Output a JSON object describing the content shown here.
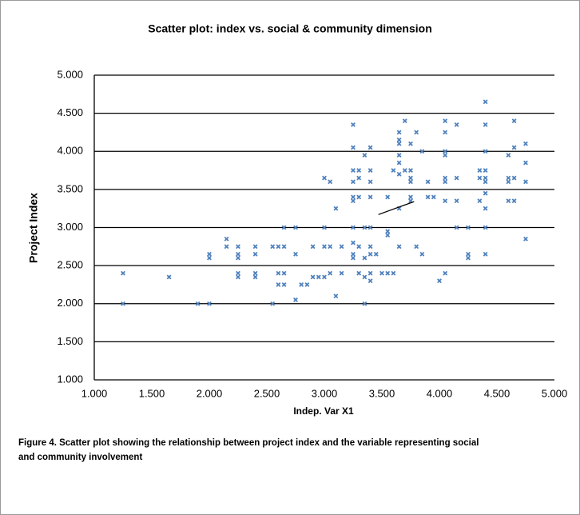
{
  "chart_data": {
    "type": "scatter",
    "title": "Scatter plot: index vs. social & community dimension",
    "x_label": "Indep. Var X1",
    "y_label": "Project  Index",
    "caption": "Figure 4. Scatter plot showing the relationship between project index and the variable representing social and community involvement",
    "color": "#4f81bd",
    "grid": true,
    "xlim": [
      1,
      5
    ],
    "ylim": [
      1,
      5
    ],
    "xticks": [
      {
        "value": 1,
        "label": "1.000"
      },
      {
        "value": 1.5,
        "label": "1.500"
      },
      {
        "value": 2,
        "label": "2.000"
      },
      {
        "value": 2.5,
        "label": "2.500"
      },
      {
        "value": 3,
        "label": "3.000"
      },
      {
        "value": 3.5,
        "label": "3.500"
      },
      {
        "value": 4,
        "label": "4.000"
      },
      {
        "value": 4.5,
        "label": "4.500"
      },
      {
        "value": 5,
        "label": "5.000"
      }
    ],
    "yticks": [
      {
        "value": 1,
        "label": "1.000"
      },
      {
        "value": 1.5,
        "label": "1.500"
      },
      {
        "value": 2,
        "label": "2.000"
      },
      {
        "value": 2.5,
        "label": "2.500"
      },
      {
        "value": 3,
        "label": "3.000"
      },
      {
        "value": 3.5,
        "label": "3.500"
      },
      {
        "value": 4,
        "label": "4.000"
      },
      {
        "value": 4.5,
        "label": "4.500"
      },
      {
        "value": 5,
        "label": "5.000"
      }
    ],
    "trendline": {
      "x": [
        3.47,
        3.78
      ],
      "y": [
        3.17,
        3.34
      ]
    },
    "x": [
      1.25,
      1.25,
      1.65,
      1.9,
      2.0,
      2.0,
      2.0,
      2.15,
      2.15,
      2.25,
      2.25,
      2.25,
      2.25,
      2.25,
      2.4,
      2.4,
      2.4,
      2.4,
      2.55,
      2.55,
      2.6,
      2.6,
      2.6,
      2.65,
      2.65,
      2.65,
      2.65,
      2.75,
      2.75,
      2.75,
      2.8,
      2.85,
      2.9,
      2.9,
      2.95,
      3.0,
      3.0,
      3.0,
      3.0,
      3.05,
      3.05,
      3.05,
      3.1,
      3.1,
      3.15,
      3.15,
      3.25,
      3.25,
      3.25,
      3.25,
      3.25,
      3.25,
      3.25,
      3.25,
      3.25,
      3.25,
      3.3,
      3.3,
      3.3,
      3.3,
      3.3,
      3.35,
      3.35,
      3.35,
      3.35,
      3.35,
      3.4,
      3.4,
      3.4,
      3.4,
      3.4,
      3.4,
      3.4,
      3.4,
      3.4,
      3.45,
      3.5,
      3.55,
      3.55,
      3.55,
      3.55,
      3.6,
      3.6,
      3.65,
      3.65,
      3.65,
      3.65,
      3.65,
      3.65,
      3.65,
      3.65,
      3.7,
      3.7,
      3.75,
      3.75,
      3.75,
      3.75,
      3.75,
      3.75,
      3.8,
      3.8,
      3.85,
      3.85,
      3.9,
      3.9,
      3.95,
      4.0,
      4.05,
      4.05,
      4.05,
      4.05,
      4.05,
      4.05,
      4.05,
      4.05,
      4.15,
      4.15,
      4.15,
      4.15,
      4.25,
      4.25,
      4.25,
      4.35,
      4.35,
      4.35,
      4.4,
      4.4,
      4.4,
      4.4,
      4.4,
      4.4,
      4.4,
      4.4,
      4.4,
      4.4,
      4.6,
      4.6,
      4.6,
      4.6,
      4.65,
      4.65,
      4.65,
      4.65,
      4.75,
      4.75,
      4.75,
      4.75
    ],
    "values": [
      2.4,
      2.0,
      2.35,
      2.0,
      2.0,
      2.6,
      2.65,
      2.85,
      2.75,
      2.75,
      2.65,
      2.6,
      2.4,
      2.35,
      2.75,
      2.65,
      2.4,
      2.35,
      2.75,
      2.0,
      2.4,
      2.25,
      2.75,
      3.0,
      2.75,
      2.4,
      2.25,
      3.0,
      2.65,
      2.05,
      2.25,
      2.25,
      2.75,
      2.35,
      2.35,
      3.65,
      3.0,
      2.75,
      2.35,
      3.6,
      2.75,
      2.4,
      3.25,
      2.1,
      2.75,
      2.4,
      4.35,
      4.05,
      3.75,
      3.6,
      3.4,
      3.35,
      3.0,
      2.8,
      2.65,
      2.6,
      3.75,
      3.65,
      3.4,
      2.75,
      2.4,
      3.95,
      3.0,
      2.6,
      2.35,
      2.0,
      4.05,
      3.75,
      3.6,
      3.4,
      3.0,
      2.75,
      2.65,
      2.4,
      2.3,
      2.65,
      2.4,
      3.4,
      2.95,
      2.9,
      2.4,
      3.75,
      2.4,
      4.25,
      4.15,
      4.1,
      3.95,
      3.85,
      3.7,
      3.25,
      2.75,
      4.4,
      3.75,
      4.1,
      3.75,
      3.65,
      3.6,
      3.4,
      3.35,
      4.25,
      2.75,
      4.0,
      2.65,
      3.6,
      3.4,
      3.4,
      2.3,
      4.4,
      4.25,
      4.0,
      3.95,
      3.65,
      3.6,
      3.35,
      2.4,
      4.35,
      3.65,
      3.35,
      3.0,
      3.0,
      2.65,
      2.6,
      3.75,
      3.65,
      3.35,
      4.65,
      4.35,
      4.0,
      3.75,
      3.65,
      3.6,
      3.45,
      3.25,
      3.0,
      2.65,
      3.95,
      3.65,
      3.6,
      3.35,
      4.4,
      4.05,
      3.65,
      3.35,
      4.1,
      3.85,
      3.6,
      2.85
    ]
  }
}
